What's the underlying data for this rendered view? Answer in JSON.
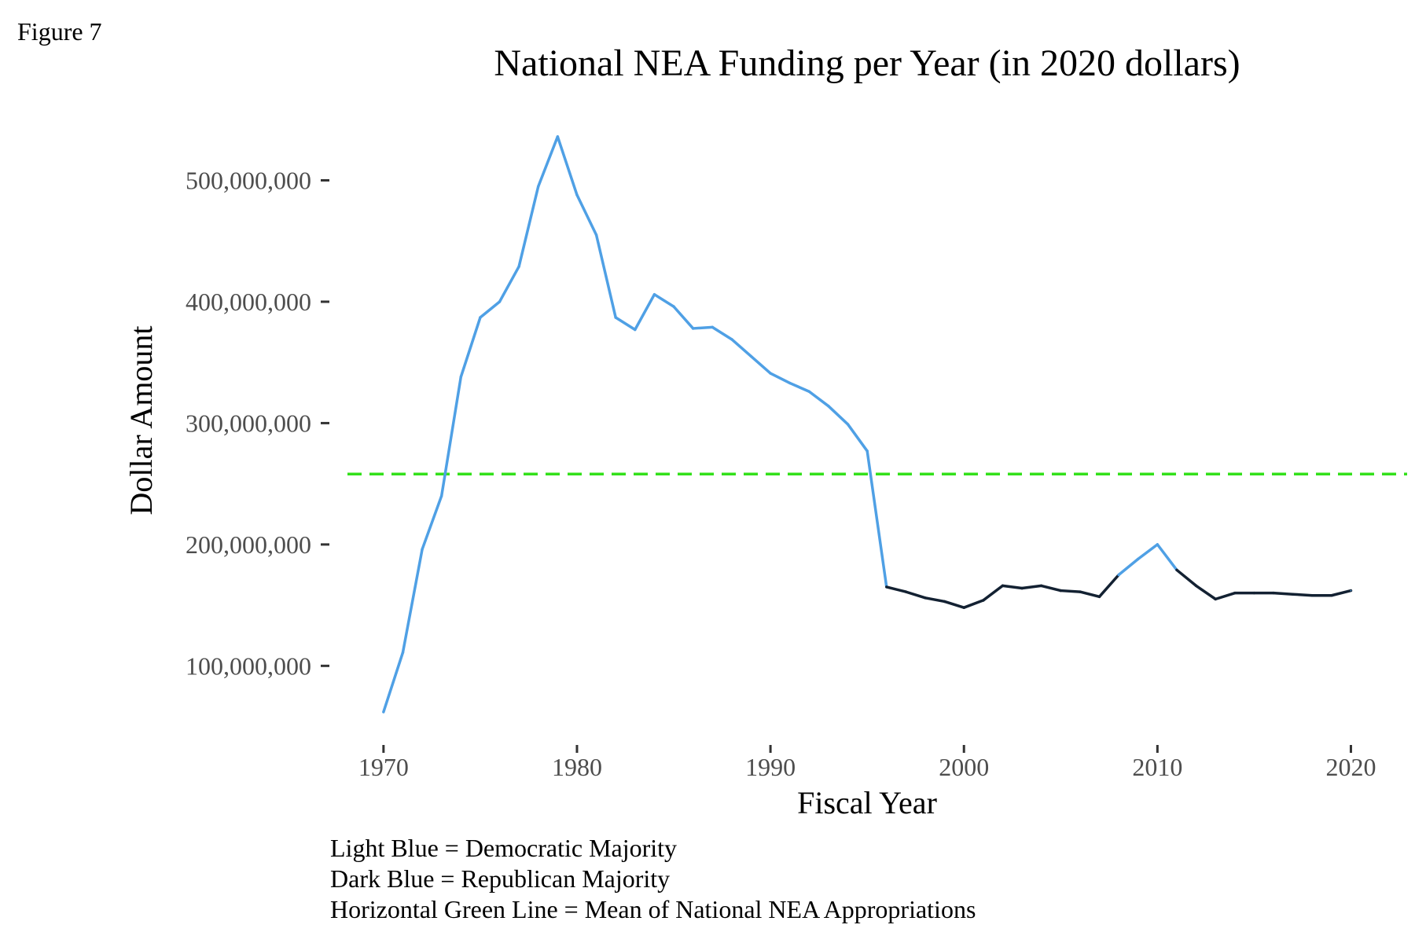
{
  "figure_label": "Figure 7",
  "notes": [
    "Light Blue = Democratic Majority",
    "Dark Blue = Republican Majority",
    "Horizontal Green Line = Mean of National NEA Appropriations"
  ],
  "chart_data": {
    "type": "line",
    "title": "National NEA Funding per Year (in 2020 dollars)",
    "xlabel": "Fiscal Year",
    "ylabel": "Dollar Amount",
    "xlim": [
      1968.3,
      2022.5
    ],
    "ylim": [
      40000000,
      545000000
    ],
    "x_ticks": [
      1970,
      1980,
      1990,
      2000,
      2010,
      2020
    ],
    "y_ticks": [
      100000000,
      200000000,
      300000000,
      400000000,
      500000000
    ],
    "y_tick_labels": [
      "100,000,000",
      "200,000,000",
      "300,000,000",
      "400,000,000",
      "500,000,000"
    ],
    "grid": false,
    "colors": {
      "democratic": "#4fa0e5",
      "republican": "#132132",
      "mean": "#33e01a",
      "tick_text": "#4d4d4d"
    },
    "mean_value": 258000000,
    "x": [
      1970,
      1971,
      1972,
      1973,
      1974,
      1975,
      1976,
      1977,
      1978,
      1979,
      1980,
      1981,
      1982,
      1983,
      1984,
      1985,
      1986,
      1987,
      1988,
      1989,
      1990,
      1991,
      1992,
      1993,
      1994,
      1995,
      1996,
      1997,
      1998,
      1999,
      2000,
      2001,
      2002,
      2003,
      2004,
      2005,
      2006,
      2007,
      2008,
      2009,
      2010,
      2011,
      2012,
      2013,
      2014,
      2015,
      2016,
      2017,
      2018,
      2019,
      2020
    ],
    "values": [
      62000000,
      111000000,
      196000000,
      240000000,
      338000000,
      387000000,
      400000000,
      429000000,
      495000000,
      536000000,
      488000000,
      455000000,
      387000000,
      377000000,
      406000000,
      396000000,
      378000000,
      379000000,
      369000000,
      355000000,
      341000000,
      333000000,
      326000000,
      314000000,
      299000000,
      277000000,
      165000000,
      161000000,
      156000000,
      153000000,
      148000000,
      154000000,
      166000000,
      164000000,
      166000000,
      162000000,
      161000000,
      157000000,
      175000000,
      188000000,
      200000000,
      179000000,
      166000000,
      155000000,
      160000000,
      160000000,
      160000000,
      159000000,
      158000000,
      158000000,
      162000000
    ],
    "majority": [
      "D",
      "D",
      "D",
      "D",
      "D",
      "D",
      "D",
      "D",
      "D",
      "D",
      "D",
      "D",
      "D",
      "D",
      "D",
      "D",
      "D",
      "D",
      "D",
      "D",
      "D",
      "D",
      "D",
      "D",
      "D",
      "D",
      "R",
      "R",
      "R",
      "R",
      "R",
      "R",
      "R",
      "R",
      "R",
      "R",
      "R",
      "R",
      "D",
      "D",
      "D",
      "R",
      "R",
      "R",
      "R",
      "R",
      "R",
      "R",
      "R",
      "R",
      "D"
    ]
  }
}
